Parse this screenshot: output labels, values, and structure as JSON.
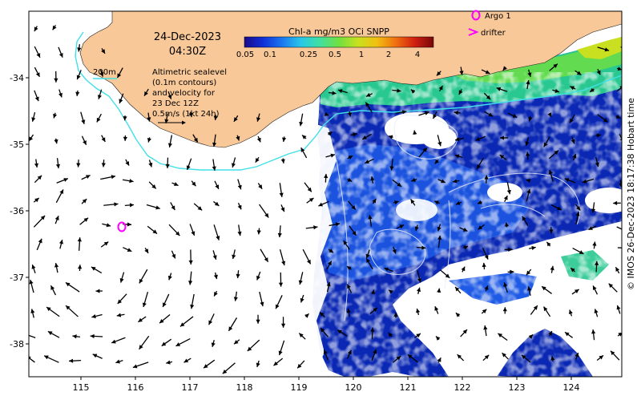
{
  "map": {
    "date": "24-Dec-2023",
    "time": "04:30Z",
    "colorbar": {
      "title": "Chl-a mg/m3 OCi SNPP",
      "ticks": [
        "0.05",
        "0.1",
        "0.25",
        "0.5",
        "1",
        "2",
        "4"
      ],
      "colors": [
        "#1a0a8c",
        "#1030d8",
        "#1a78f0",
        "#28c8e8",
        "#40e0a0",
        "#70e040",
        "#c8e020",
        "#f0c010",
        "#f07010",
        "#d02010",
        "#780808"
      ]
    },
    "legend": {
      "argo": "Argo 1",
      "drifter": "drifter",
      "marker_color": "#ff00ff"
    },
    "contour_label": "200m",
    "annotation": [
      "Altimetric sealevel",
      "(0.1m contours)",
      "and velocity for",
      "23 Dec 12Z",
      "0.5m/s (1kt 24h)"
    ],
    "x_ticks": [
      "115",
      "116",
      "117",
      "118",
      "119",
      "120",
      "121",
      "122",
      "123",
      "124"
    ],
    "y_ticks": [
      "-34",
      "-35",
      "-36",
      "-37",
      "-38"
    ],
    "credit": "© IMOS 26-Dec-2023 18:17:38 Hobart time",
    "colors": {
      "land": "#f8c898",
      "bathy_contour": "#40e0e8",
      "ocean_blank": "#ffffff",
      "chl_deep": "#0a28b4",
      "chl_mid": "#1e5ae6",
      "chl_shelf": "#28c890"
    }
  }
}
